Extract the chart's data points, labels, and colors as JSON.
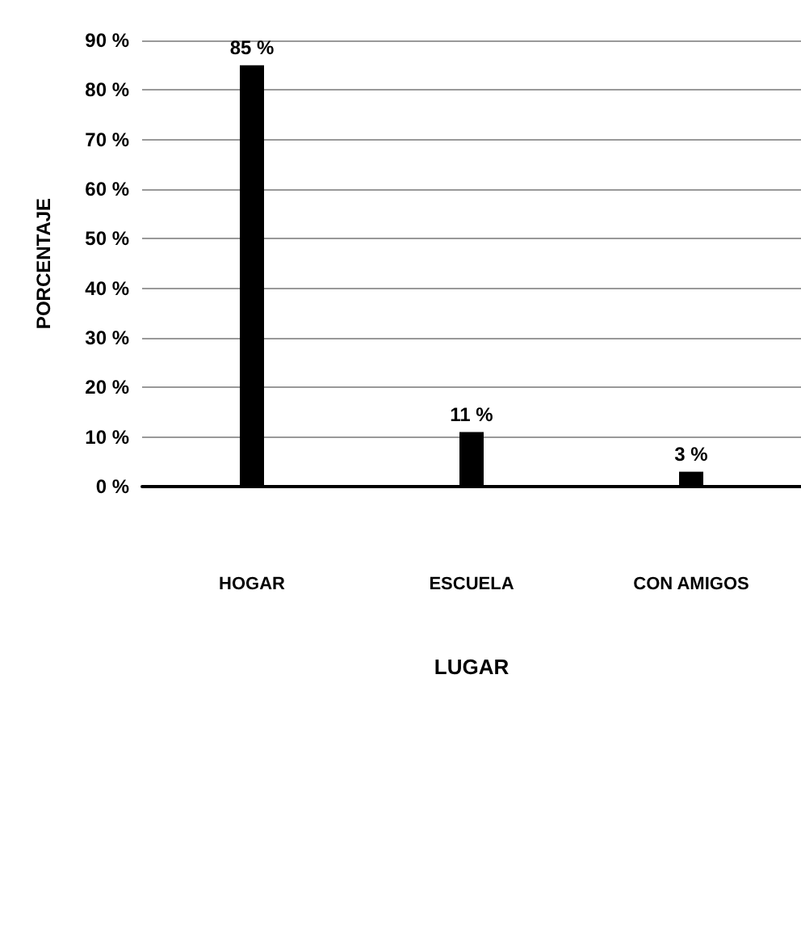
{
  "chart_data": {
    "type": "bar",
    "xlabel": "LUGAR",
    "ylabel": "PORCENTAJE",
    "categories": [
      "HOGAR",
      "ESCUELA",
      "CON AMIGOS"
    ],
    "values": [
      85,
      11,
      3
    ],
    "value_labels": [
      "85 %",
      "11 %",
      "3 %"
    ],
    "color": "#000000",
    "ylim": [
      0,
      90
    ],
    "yticks": [
      {
        "value": 0,
        "label": "0 %"
      },
      {
        "value": 10,
        "label": "10 %"
      },
      {
        "value": 20,
        "label": "20 %"
      },
      {
        "value": 30,
        "label": "30 %"
      },
      {
        "value": 40,
        "label": "40 %"
      },
      {
        "value": 50,
        "label": "50 %"
      },
      {
        "value": 60,
        "label": "60 %"
      },
      {
        "value": 70,
        "label": "70 %"
      },
      {
        "value": 80,
        "label": "80 %"
      },
      {
        "value": 90,
        "label": "90 %"
      }
    ],
    "grid": "y"
  }
}
